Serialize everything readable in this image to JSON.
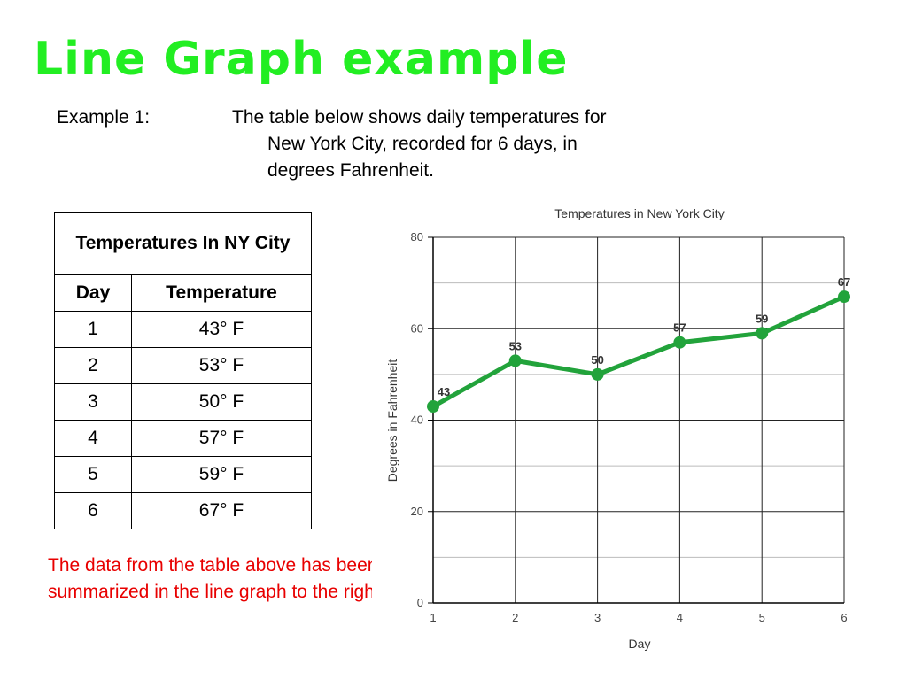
{
  "slide": {
    "title": "Line Graph example",
    "intro": {
      "label": "Example 1:",
      "line1": "The table below shows daily temperatures for",
      "line2": "New York City, recorded for 6 days, in",
      "line3": "degrees Fahrenheit."
    },
    "table": {
      "caption": "Temperatures In NY City",
      "headers": [
        "Day",
        "Temperature"
      ],
      "rows": [
        [
          "1",
          "43° F"
        ],
        [
          "2",
          "53° F"
        ],
        [
          "3",
          "50° F"
        ],
        [
          "4",
          "57° F"
        ],
        [
          "5",
          "59° F"
        ],
        [
          "6",
          "67° F"
        ]
      ]
    },
    "note": "The data from the table above has been summarized in the line graph to the right."
  },
  "chart_data": {
    "type": "line",
    "title": "Temperatures in New York City",
    "xlabel": "Day",
    "ylabel": "Degrees in Fahrenheit",
    "x": [
      1,
      2,
      3,
      4,
      5,
      6
    ],
    "y": [
      43,
      53,
      50,
      57,
      59,
      67
    ],
    "data_labels": [
      "43",
      "53",
      "50",
      "57",
      "59",
      "67"
    ],
    "ylim": [
      0,
      80
    ],
    "yticks": [
      0,
      20,
      40,
      60,
      80
    ],
    "xticks": [
      1,
      2,
      3,
      4,
      5,
      6
    ],
    "grid": true,
    "line_color": "#22a33b"
  }
}
